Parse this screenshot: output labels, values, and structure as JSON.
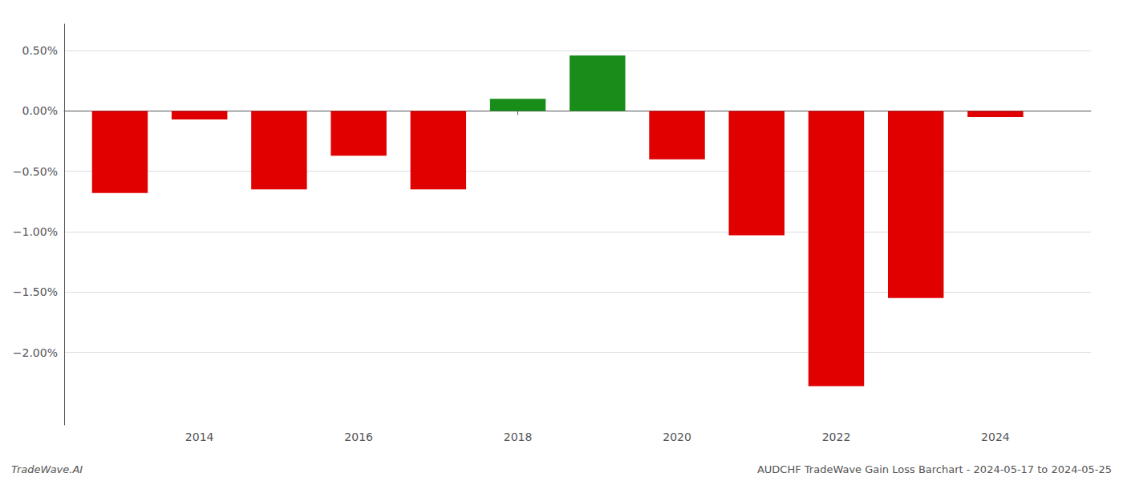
{
  "chart_data": {
    "type": "bar",
    "x": [
      2013,
      2014,
      2015,
      2016,
      2017,
      2018,
      2019,
      2020,
      2021,
      2022,
      2023,
      2024
    ],
    "values": [
      -0.68,
      -0.07,
      -0.65,
      -0.37,
      -0.65,
      0.1,
      0.46,
      -0.4,
      -1.03,
      -2.28,
      -1.55,
      -0.05
    ],
    "colors": [
      "#e00000",
      "#e00000",
      "#e00000",
      "#e00000",
      "#e00000",
      "#1a8c1a",
      "#1a8c1a",
      "#e00000",
      "#e00000",
      "#e00000",
      "#e00000",
      "#e00000"
    ],
    "xlim": [
      2012.3,
      2025.2
    ],
    "xticks": [
      2014,
      2016,
      2018,
      2020,
      2022,
      2024
    ],
    "ylim": [
      -2.6,
      0.72
    ],
    "yticks": [
      {
        "value": 0.5,
        "label": "0.50%"
      },
      {
        "value": 0.0,
        "label": "0.00%"
      },
      {
        "value": -0.5,
        "label": "−0.50%"
      },
      {
        "value": -1.0,
        "label": "−1.00%"
      },
      {
        "value": -1.5,
        "label": "−1.50%"
      },
      {
        "value": -2.0,
        "label": "−2.00%"
      }
    ],
    "grid": true,
    "annotations": [
      "TradeWave.AI",
      "AUDCHF TradeWave Gain Loss Barchart - 2024-05-17 to 2024-05-25"
    ]
  }
}
